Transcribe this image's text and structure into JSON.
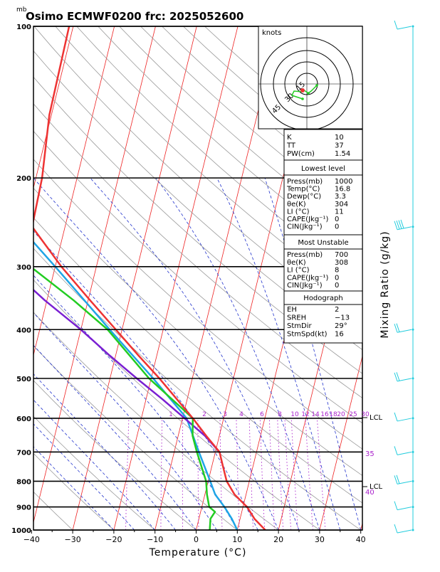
{
  "header": {
    "mb_label": "mb",
    "title": "Osimo ECMWF0200 frc: 2025052600"
  },
  "axes": {
    "xlabel": "Temperature (°C)",
    "ylabel": "Mixing Ratio (g/kg)",
    "x_ticks": [
      "−40",
      "−30",
      "−20",
      "−10",
      "0",
      "10",
      "20",
      "30",
      "40"
    ],
    "p_ticks": [
      "100",
      "200",
      "300",
      "400",
      "500",
      "600",
      "700",
      "800",
      "900",
      "1000"
    ]
  },
  "mixing_ratio_labels": [
    "1",
    "2",
    "3",
    "4",
    "6",
    "8",
    "10",
    "12",
    "14",
    "16",
    "18",
    "20",
    "25",
    "30"
  ],
  "side_labels": {
    "lcl_top": "LCL",
    "lcl_bottom": "LCL",
    "v35": "35",
    "v40": "40"
  },
  "hodograph": {
    "title": "knots",
    "ring_labels": [
      "15",
      "30",
      "45"
    ]
  },
  "indices": {
    "rows": [
      {
        "k": "K",
        "v": "10"
      },
      {
        "k": "TT",
        "v": "37"
      },
      {
        "k": "PW(cm)",
        "v": "1.54"
      }
    ]
  },
  "lowest_level": {
    "title": "Lowest level",
    "rows": [
      {
        "k": "Press(mb)",
        "v": "1000"
      },
      {
        "k": "Temp(°C)",
        "v": "16.8"
      },
      {
        "k": "Dewp(°C)",
        "v": "3.3"
      },
      {
        "k": "θe(K)",
        "v": "304"
      },
      {
        "k": "LI (°C)",
        "v": "11"
      },
      {
        "k": "CAPE(Jkg⁻¹)",
        "v": "0"
      },
      {
        "k": "CIN(Jkg⁻¹)",
        "v": "0"
      }
    ]
  },
  "most_unstable": {
    "title": "Most Unstable",
    "rows": [
      {
        "k": "Press(mb)",
        "v": "700"
      },
      {
        "k": "θe(K)",
        "v": "308"
      },
      {
        "k": "LI (°C)",
        "v": "8"
      },
      {
        "k": "CAPE(Jkg⁻¹)",
        "v": "0"
      },
      {
        "k": "CIN(Jkg⁻¹)",
        "v": "0"
      }
    ]
  },
  "hodograph_params": {
    "title": "Hodograph",
    "rows": [
      {
        "k": "EH",
        "v": "2"
      },
      {
        "k": "SREH",
        "v": "−13"
      },
      {
        "k": "StmDir",
        "v": "29°"
      },
      {
        "k": "StmSpd(kt)",
        "v": "16"
      }
    ]
  },
  "colors": {
    "temperature": "#ee3333",
    "dewpoint": "#22cc22",
    "parcel": "#7a1fd2",
    "wetbulb": "#1fa5e6",
    "isotherm": "#ee2222",
    "dry_adiabat": "#9a9a9a",
    "moist_adiabat": "#2233cc",
    "mixing_ratio": "#aa22cc",
    "wind": "#22ccdd"
  },
  "chart_data": {
    "type": "line",
    "title": "Osimo ECMWF0200 frc: 2025052600",
    "xlabel": "Temperature (°C)",
    "ylabel": "Mixing Ratio (g/kg)",
    "xlim": [
      -40,
      40
    ],
    "ylim_pressure_mb": [
      1000,
      100
    ],
    "y_scale": "log",
    "series": [
      {
        "name": "Temperature",
        "p": [
          1000,
          950,
          900,
          850,
          800,
          750,
          700,
          650,
          600,
          550,
          500,
          450,
          400,
          350,
          300,
          250,
          200,
          150,
          100
        ],
        "t": [
          16.8,
          13.5,
          11.0,
          7.2,
          4.5,
          2.8,
          1.0,
          -3.2,
          -7.5,
          -12.5,
          -18.0,
          -24.5,
          -31.5,
          -39.5,
          -48.5,
          -58.0,
          -58.5,
          -60.5,
          -61.0
        ]
      },
      {
        "name": "Dewpoint",
        "p": [
          1000,
          950,
          920,
          900,
          850,
          800,
          700,
          650,
          600,
          500,
          400,
          350,
          300,
          250,
          200,
          150,
          100
        ],
        "t": [
          3.3,
          2.8,
          3.5,
          1.8,
          0.5,
          -0.5,
          -4.5,
          -6.5,
          -7.5,
          -20.5,
          -33.5,
          -43.5,
          -56.0,
          -70.0,
          -75.0,
          -78.0,
          -80.0
        ]
      },
      {
        "name": "Parcel",
        "p": [
          700,
          650,
          600,
          550,
          500,
          450,
          400,
          350,
          300,
          250,
          200,
          150
        ],
        "t": [
          1.0,
          -3.5,
          -9.5,
          -16.0,
          -23.5,
          -31.5,
          -40.0,
          -50.5,
          -61.5,
          -73.0,
          -83.0,
          -90.0
        ]
      },
      {
        "name": "Wet bulb",
        "p": [
          1000,
          950,
          900,
          850,
          800,
          700,
          600,
          500,
          400,
          300,
          250,
          200,
          150
        ],
        "t": [
          10.0,
          8.0,
          5.5,
          2.5,
          0.5,
          -4.0,
          -9.0,
          -19.5,
          -33.0,
          -50.0,
          -61.0,
          -70.5,
          -80.0
        ]
      }
    ],
    "wind_barbs": [
      {
        "p": 100,
        "barbs": 1
      },
      {
        "p": 250,
        "barbs": 4
      },
      {
        "p": 400,
        "barbs": 2
      },
      {
        "p": 500,
        "barbs": 2
      },
      {
        "p": 600,
        "barbs": 1
      },
      {
        "p": 700,
        "barbs": 1
      },
      {
        "p": 800,
        "barbs": 2
      },
      {
        "p": 900,
        "barbs": 1
      },
      {
        "p": 1000,
        "barbs": 1
      }
    ],
    "mixing_ratios_gkg": [
      1,
      2,
      3,
      4,
      6,
      8,
      10,
      12,
      14,
      16,
      18,
      20,
      25,
      30
    ]
  }
}
